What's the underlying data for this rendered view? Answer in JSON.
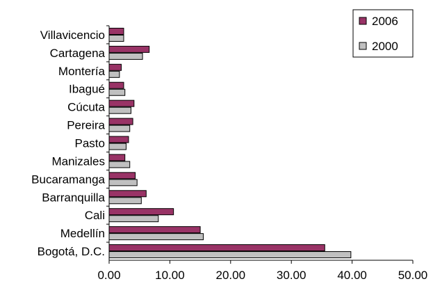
{
  "chart_data": {
    "type": "bar",
    "orientation": "horizontal",
    "title": "",
    "xlabel": "",
    "ylabel": "",
    "categories": [
      "Villavicencio",
      "Cartagena",
      "Montería",
      "Ibagué",
      "Cúcuta",
      "Pereira",
      "Pasto",
      "Manizales",
      "Bucaramanga",
      "Barranquilla",
      "Cali",
      "Medellín",
      "Bogotá, D.C."
    ],
    "series": [
      {
        "name": "2006",
        "color": "#993366",
        "values": [
          2.4,
          6.6,
          2.0,
          2.4,
          4.1,
          3.9,
          3.2,
          2.6,
          4.3,
          6.1,
          10.6,
          15.0,
          35.5
        ]
      },
      {
        "name": "2000",
        "color": "#c0c0c0",
        "values": [
          2.4,
          5.5,
          1.7,
          2.6,
          3.6,
          3.4,
          2.8,
          3.4,
          4.6,
          5.3,
          8.1,
          15.5,
          39.8
        ]
      }
    ],
    "xlim": [
      0,
      50
    ],
    "xticks": [
      "0.00",
      "10.00",
      "20.00",
      "30.00",
      "40.00",
      "50.00"
    ],
    "grid": false,
    "legend_position": "top-right"
  }
}
